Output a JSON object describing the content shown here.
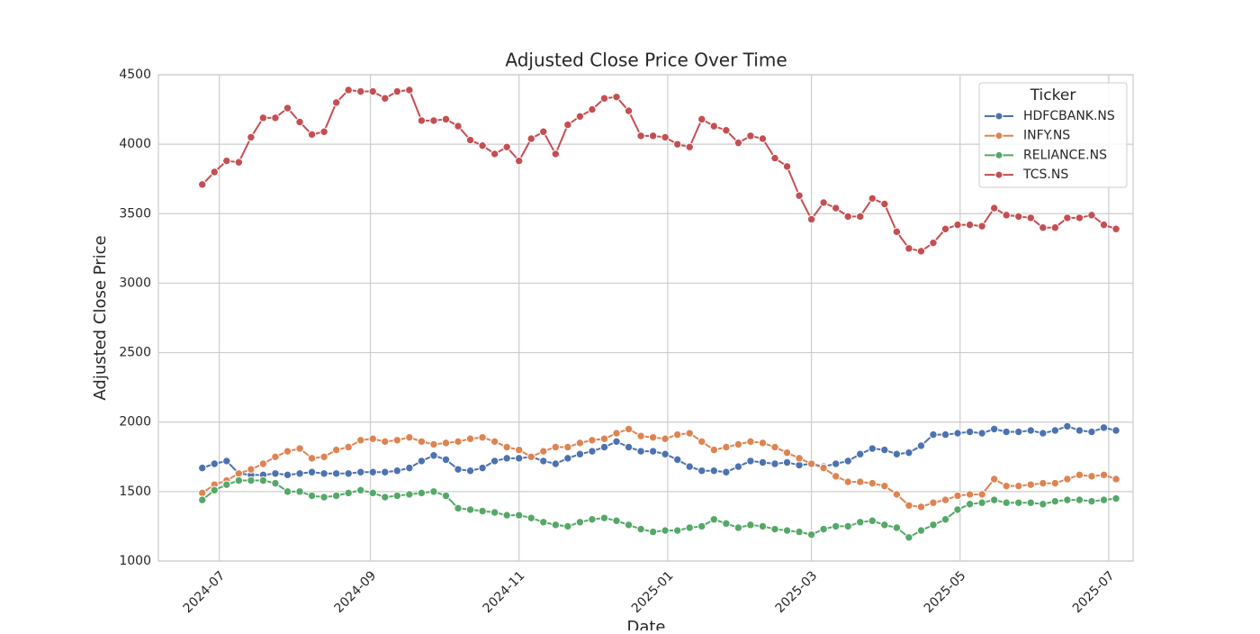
{
  "chart_data": {
    "type": "line",
    "title": "Adjusted Close Price Over Time",
    "x_label": "Date",
    "y_label": "Adjusted Close Price",
    "legend_title": "Ticker",
    "legend_position": "upper right",
    "grid": true,
    "markers": true,
    "xlim": [
      -25,
      375
    ],
    "ylim": [
      1000,
      4500
    ],
    "xticks": [
      {
        "value": 0,
        "label": "2024-07"
      },
      {
        "value": 62,
        "label": "2024-09"
      },
      {
        "value": 123,
        "label": "2024-11"
      },
      {
        "value": 184,
        "label": "2025-01"
      },
      {
        "value": 243,
        "label": "2025-03"
      },
      {
        "value": 304,
        "label": "2025-05"
      },
      {
        "value": 365,
        "label": "2025-07"
      }
    ],
    "yticks": [
      1000,
      1500,
      2000,
      2500,
      3000,
      3500,
      4000,
      4500
    ],
    "x": [
      -7,
      -2,
      3,
      8,
      13,
      18,
      23,
      28,
      33,
      38,
      43,
      48,
      53,
      58,
      63,
      68,
      73,
      78,
      83,
      88,
      93,
      98,
      103,
      108,
      113,
      118,
      123,
      128,
      133,
      138,
      143,
      148,
      153,
      158,
      163,
      168,
      173,
      178,
      183,
      188,
      193,
      198,
      203,
      208,
      213,
      218,
      223,
      228,
      233,
      238,
      243,
      248,
      253,
      258,
      263,
      268,
      273,
      278,
      283,
      288,
      293,
      298,
      303,
      308,
      313,
      318,
      323,
      328,
      333,
      338,
      343,
      348,
      353,
      358,
      363,
      368
    ],
    "series": [
      {
        "name": "HDFCBANK.NS",
        "color": "#4c72b0",
        "values": [
          1670,
          1700,
          1720,
          1630,
          1620,
          1620,
          1630,
          1620,
          1630,
          1640,
          1630,
          1630,
          1630,
          1640,
          1640,
          1640,
          1650,
          1670,
          1720,
          1760,
          1730,
          1660,
          1650,
          1670,
          1720,
          1740,
          1740,
          1750,
          1720,
          1700,
          1740,
          1770,
          1790,
          1820,
          1860,
          1820,
          1790,
          1790,
          1770,
          1730,
          1680,
          1650,
          1650,
          1640,
          1680,
          1720,
          1710,
          1700,
          1710,
          1690,
          1700,
          1680,
          1700,
          1720,
          1770,
          1810,
          1800,
          1770,
          1780,
          1830,
          1910,
          1910,
          1920,
          1930,
          1920,
          1950,
          1930,
          1930,
          1940,
          1920,
          1940,
          1970,
          1940,
          1930,
          1960,
          1940
        ]
      },
      {
        "name": "INFY.NS",
        "color": "#dd8452",
        "values": [
          1490,
          1550,
          1580,
          1630,
          1660,
          1700,
          1750,
          1790,
          1810,
          1740,
          1750,
          1800,
          1820,
          1870,
          1880,
          1860,
          1870,
          1890,
          1860,
          1840,
          1850,
          1860,
          1880,
          1890,
          1860,
          1820,
          1800,
          1750,
          1790,
          1820,
          1820,
          1850,
          1870,
          1880,
          1920,
          1950,
          1900,
          1890,
          1880,
          1910,
          1920,
          1860,
          1800,
          1820,
          1840,
          1860,
          1850,
          1820,
          1780,
          1740,
          1700,
          1670,
          1610,
          1570,
          1570,
          1560,
          1540,
          1480,
          1400,
          1390,
          1420,
          1440,
          1470,
          1480,
          1480,
          1590,
          1540,
          1540,
          1550,
          1560,
          1560,
          1590,
          1620,
          1610,
          1620,
          1590
        ]
      },
      {
        "name": "RELIANCE.NS",
        "color": "#55a868",
        "values": [
          1440,
          1510,
          1550,
          1580,
          1580,
          1580,
          1560,
          1500,
          1500,
          1470,
          1460,
          1470,
          1490,
          1510,
          1490,
          1460,
          1470,
          1480,
          1490,
          1500,
          1470,
          1380,
          1370,
          1360,
          1350,
          1330,
          1330,
          1310,
          1280,
          1260,
          1250,
          1280,
          1300,
          1310,
          1290,
          1260,
          1230,
          1210,
          1220,
          1220,
          1240,
          1250,
          1300,
          1270,
          1240,
          1260,
          1250,
          1230,
          1220,
          1210,
          1190,
          1230,
          1250,
          1250,
          1280,
          1290,
          1260,
          1240,
          1170,
          1220,
          1260,
          1300,
          1370,
          1410,
          1420,
          1440,
          1420,
          1420,
          1420,
          1410,
          1430,
          1440,
          1440,
          1430,
          1440,
          1450
        ]
      },
      {
        "name": "TCS.NS",
        "color": "#c44e52",
        "values": [
          3710,
          3800,
          3880,
          3870,
          4050,
          4190,
          4190,
          4260,
          4160,
          4070,
          4090,
          4300,
          4390,
          4380,
          4380,
          4330,
          4380,
          4390,
          4170,
          4170,
          4180,
          4130,
          4030,
          3990,
          3930,
          3980,
          3880,
          4040,
          4090,
          3930,
          4140,
          4200,
          4250,
          4330,
          4340,
          4240,
          4060,
          4060,
          4050,
          4000,
          3980,
          4180,
          4130,
          4100,
          4010,
          4060,
          4040,
          3900,
          3840,
          3630,
          3460,
          3580,
          3540,
          3480,
          3480,
          3610,
          3570,
          3370,
          3250,
          3230,
          3290,
          3390,
          3420,
          3420,
          3410,
          3540,
          3490,
          3480,
          3470,
          3400,
          3400,
          3470,
          3470,
          3490,
          3420,
          3390
        ]
      }
    ]
  }
}
